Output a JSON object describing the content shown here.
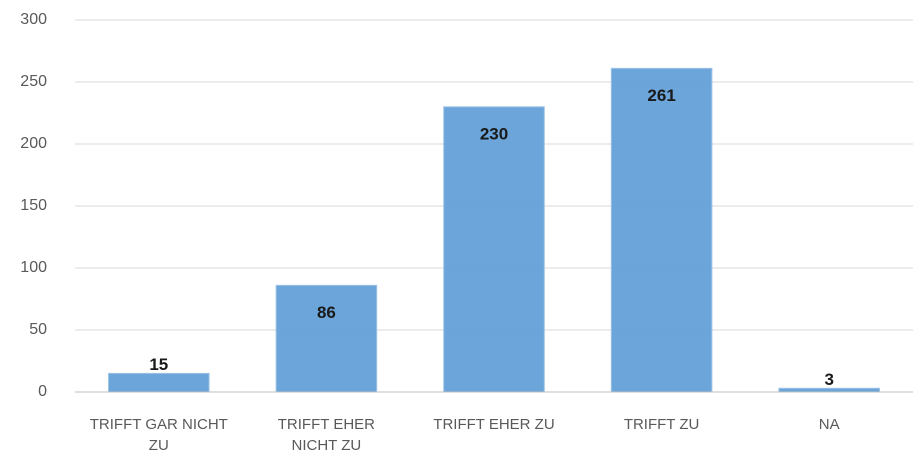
{
  "chart_data": {
    "type": "bar",
    "categories": [
      "TRIFFT GAR NICHT ZU",
      "TRIFFT EHER NICHT ZU",
      "TRIFFT EHER ZU",
      "TRIFFT ZU",
      "NA"
    ],
    "values": [
      15,
      86,
      230,
      261,
      3
    ],
    "color": "#5b9bd5",
    "ylim": [
      0,
      300
    ],
    "yticks": [
      0,
      50,
      100,
      150,
      200,
      250,
      300
    ],
    "grid": true
  }
}
